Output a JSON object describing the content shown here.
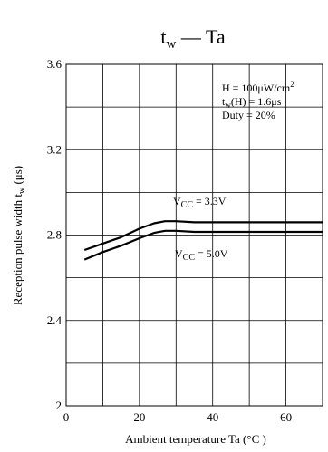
{
  "chart_data": {
    "type": "line",
    "title_parts": {
      "main": "t",
      "sub": "w",
      "rest": " — Ta"
    },
    "xlabel": "Ambient temperature    Ta  (°C )",
    "ylabel_parts": {
      "text": "Reception pulse width   t",
      "sub": "w",
      "unit": "  (μs)"
    },
    "xlim": [
      0,
      70
    ],
    "ylim": [
      2.0,
      3.6
    ],
    "x_ticks": [
      0,
      20,
      40,
      60
    ],
    "y_ticks": [
      {
        "value": 2.0,
        "label": "2"
      },
      {
        "value": 2.4,
        "label": "2.4"
      },
      {
        "value": 2.8,
        "label": "2.8"
      },
      {
        "value": 3.2,
        "label": "3.2"
      },
      {
        "value": 3.6,
        "label": "3.6"
      }
    ],
    "x_grid": [
      0,
      10,
      20,
      30,
      40,
      50,
      60,
      70
    ],
    "y_grid": [
      2.0,
      2.2,
      2.4,
      2.6,
      2.8,
      3.0,
      3.2,
      3.4,
      3.6
    ],
    "grid": true,
    "conditions": [
      {
        "pre": "H = 100μW/cm",
        "sup": "2",
        "sub": "",
        "post": ""
      },
      {
        "pre": "t",
        "sub": "w",
        "post": "(H) = 1.6μs",
        "sup": ""
      },
      {
        "pre": "Duty = 20%",
        "sub": "",
        "post": "",
        "sup": ""
      }
    ],
    "series": [
      {
        "label_parts": {
          "pre": "V",
          "sub": "CC",
          "post": " = 3.3V"
        },
        "x": [
          5,
          10,
          15,
          20,
          24,
          27,
          30,
          35,
          40,
          50,
          60,
          70
        ],
        "y": [
          2.73,
          2.76,
          2.79,
          2.83,
          2.855,
          2.865,
          2.865,
          2.86,
          2.86,
          2.86,
          2.86,
          2.86
        ]
      },
      {
        "label_parts": {
          "pre": "V",
          "sub": "CC",
          "post": " = 5.0V"
        },
        "x": [
          5,
          10,
          15,
          20,
          24,
          27,
          30,
          35,
          40,
          50,
          60,
          70
        ],
        "y": [
          2.685,
          2.72,
          2.75,
          2.785,
          2.81,
          2.82,
          2.82,
          2.815,
          2.815,
          2.815,
          2.815,
          2.815
        ]
      }
    ]
  }
}
